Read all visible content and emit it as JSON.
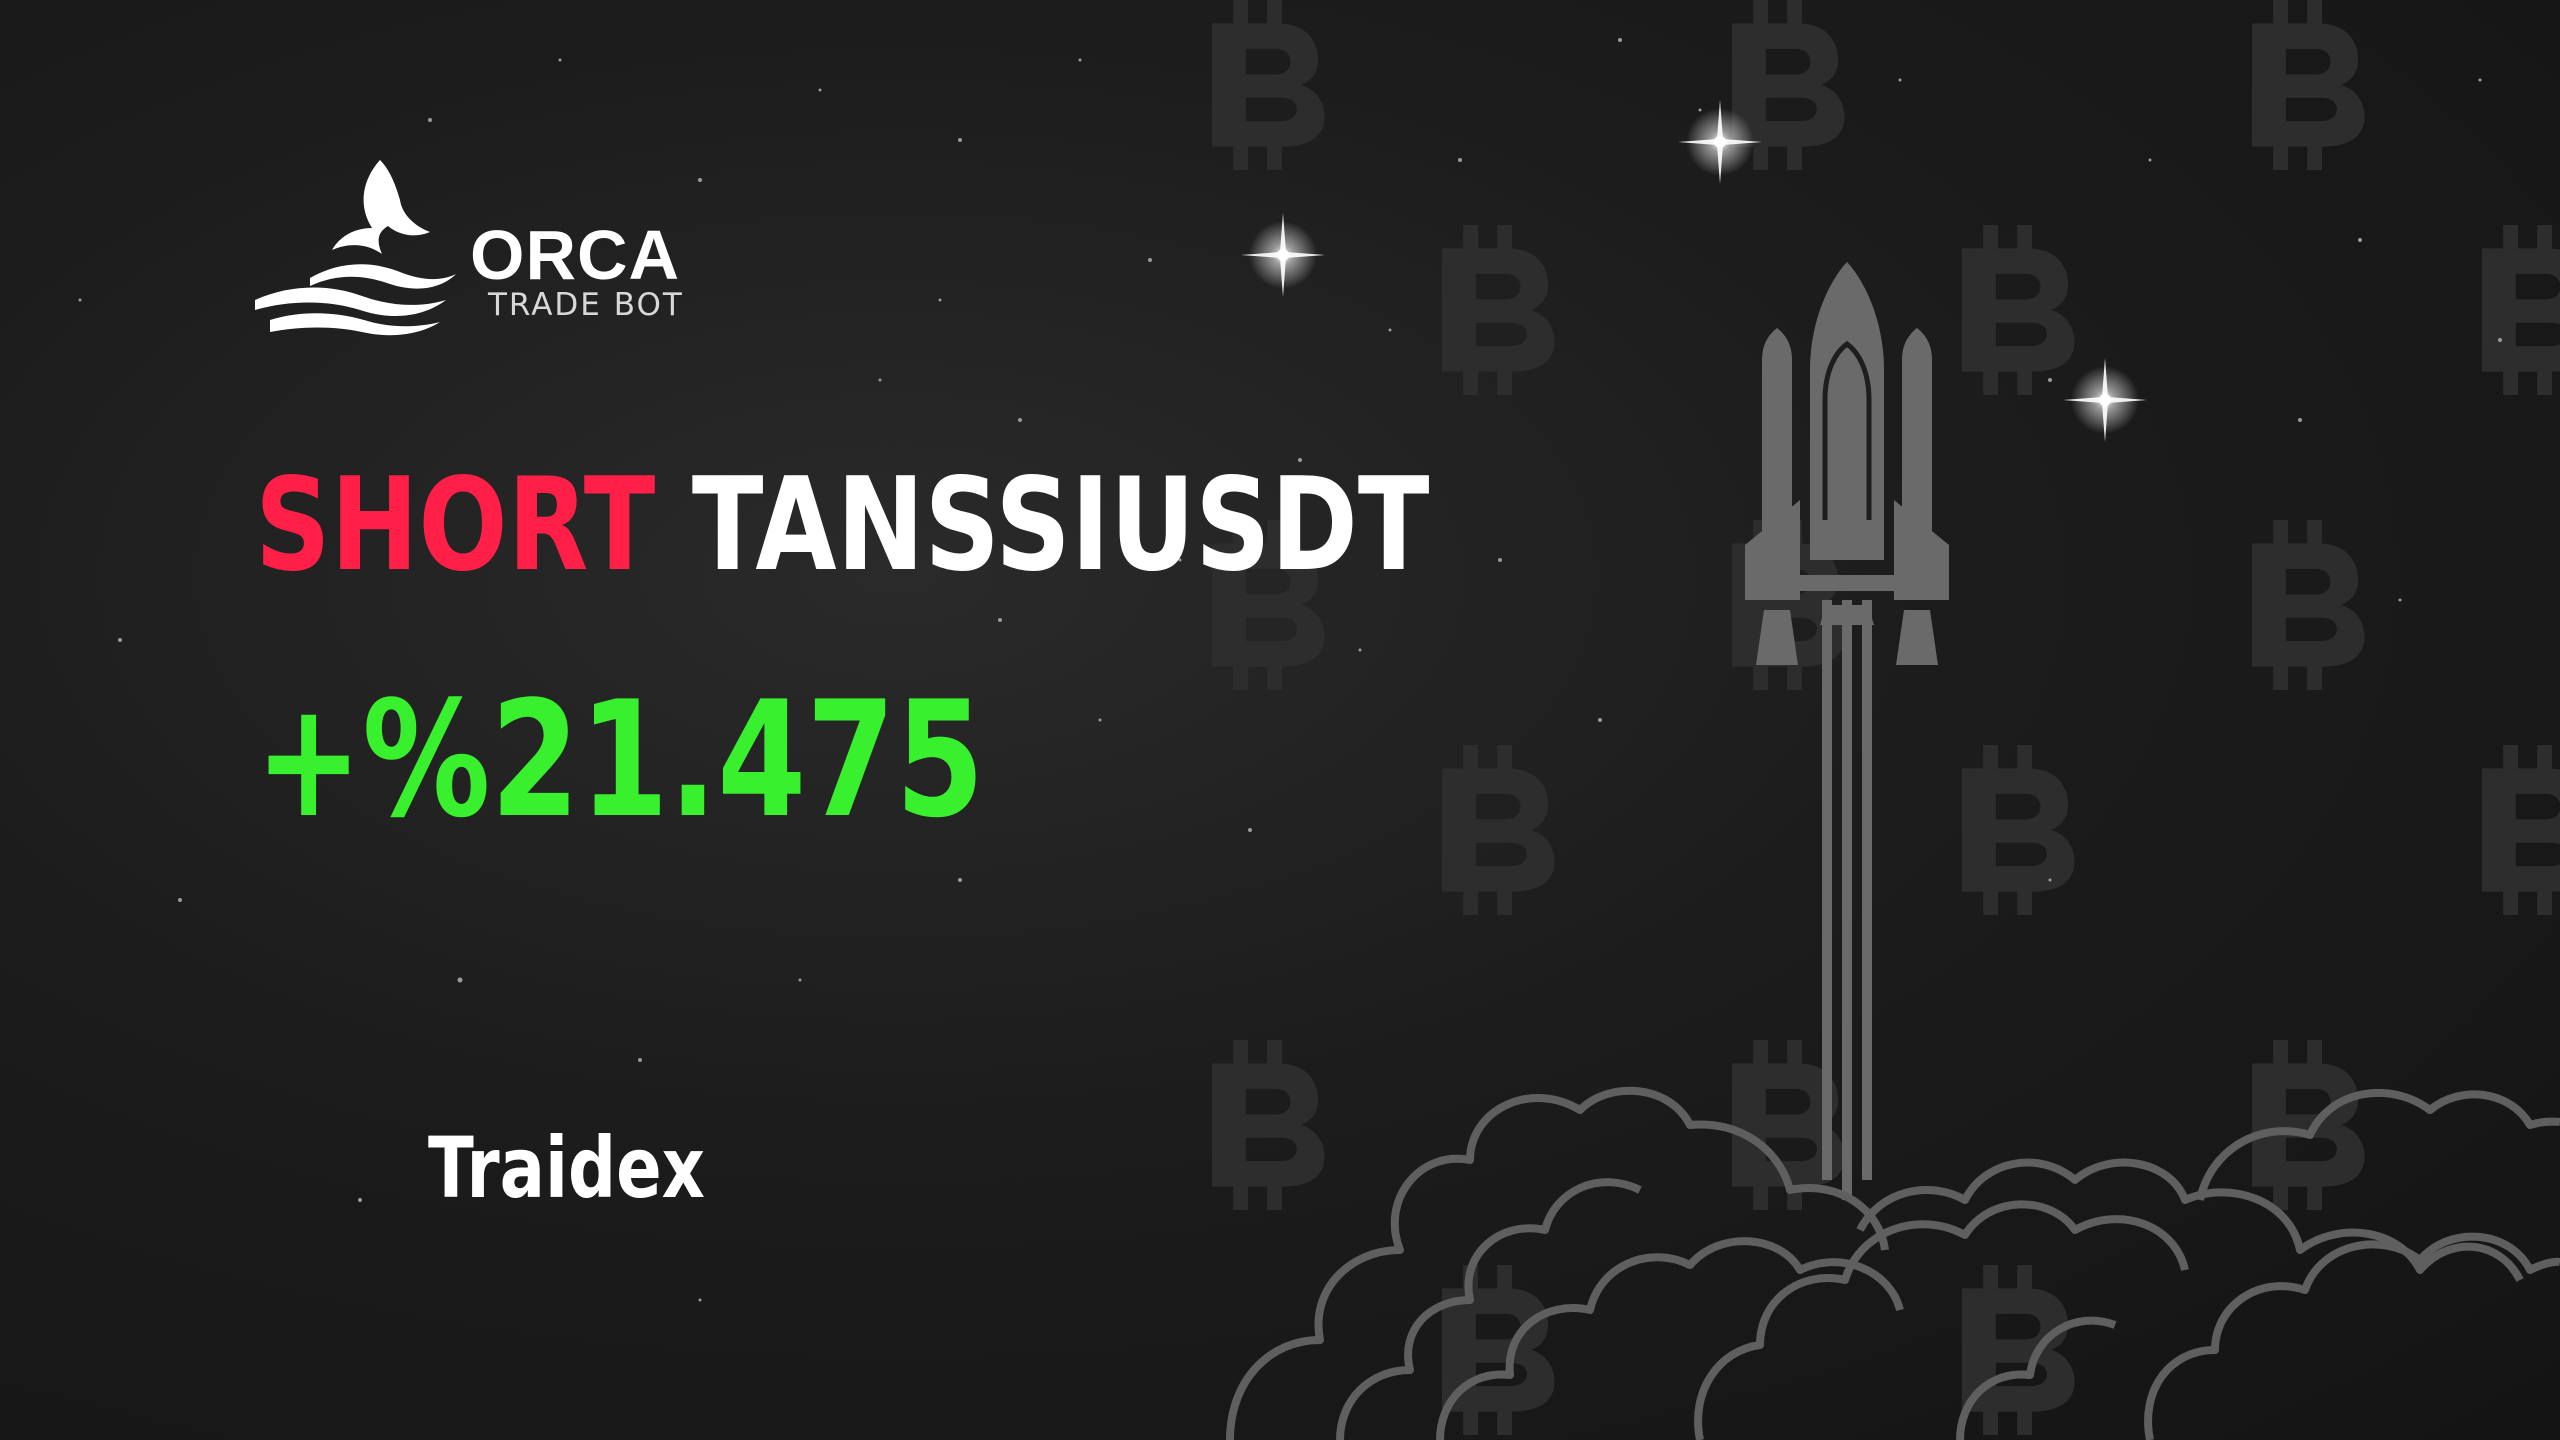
{
  "brand": {
    "name": "ORCA",
    "tagline": "TRADE BOT"
  },
  "signal": {
    "side": "SHORT",
    "symbol": "TANSSIUSDT",
    "change": "+%21.475"
  },
  "exchange": "Traidex",
  "colors": {
    "side": "#ff1f47",
    "change": "#39f02e",
    "text": "#ffffff",
    "background": "#1c1c1c",
    "art": "#6a6a6a"
  },
  "icons": [
    "orca-whale-logo-icon",
    "rocket-icon",
    "bitcoin-icon",
    "smoke-cloud-icon",
    "sparkle-star-icon"
  ]
}
